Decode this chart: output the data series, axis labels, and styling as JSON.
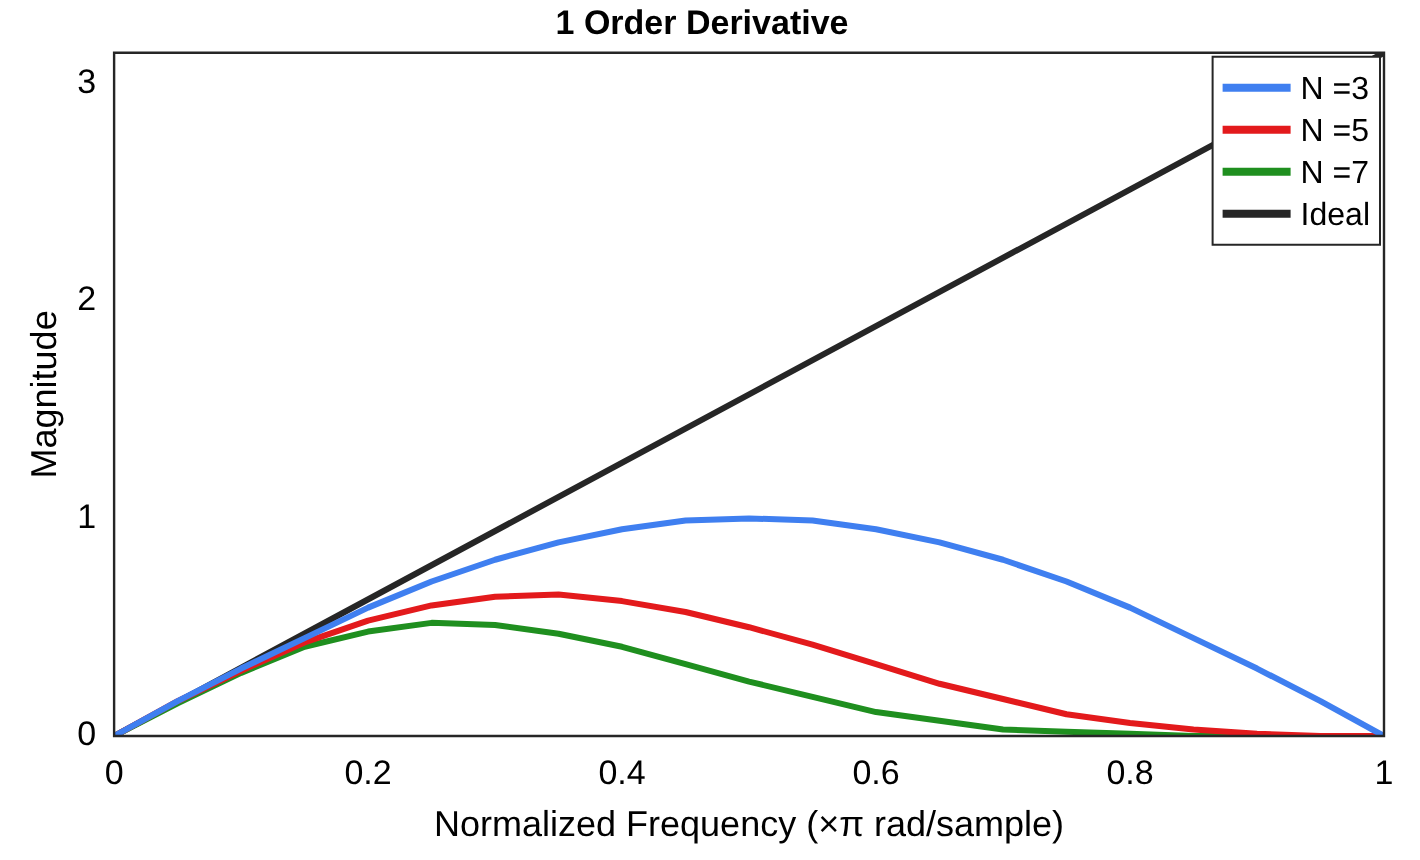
{
  "chart_data": {
    "type": "line",
    "title": "1 Order Derivative",
    "xlabel": "Normalized Frequency (×π rad/sample)",
    "ylabel": "Magnitude",
    "x": [
      0,
      0.05,
      0.1,
      0.15,
      0.2,
      0.25,
      0.3,
      0.35,
      0.4,
      0.45,
      0.5,
      0.55,
      0.6,
      0.65,
      0.7,
      0.75,
      0.8,
      0.85,
      0.9,
      0.95,
      1
    ],
    "series": [
      {
        "name": "N =3",
        "color": "#3f7ff0",
        "values": [
          0,
          0.16,
          0.31,
          0.45,
          0.59,
          0.71,
          0.81,
          0.89,
          0.95,
          0.99,
          1,
          0.99,
          0.95,
          0.89,
          0.81,
          0.71,
          0.59,
          0.45,
          0.31,
          0.16,
          0
        ]
      },
      {
        "name": "N =5",
        "color": "#e31a1c",
        "values": [
          0,
          0.16,
          0.3,
          0.43,
          0.53,
          0.6,
          0.64,
          0.65,
          0.62,
          0.57,
          0.5,
          0.42,
          0.33,
          0.24,
          0.17,
          0.1,
          0.06,
          0.03,
          0.01,
          0,
          0
        ]
      },
      {
        "name": "N =7",
        "color": "#1f8f1f",
        "values": [
          0,
          0.15,
          0.29,
          0.41,
          0.48,
          0.52,
          0.51,
          0.47,
          0.41,
          0.33,
          0.25,
          0.18,
          0.11,
          0.07,
          0.03,
          0.02,
          0.01,
          0,
          0,
          null,
          null
        ]
      },
      {
        "name": "Ideal",
        "color": "#262626",
        "x": [
          0,
          1
        ],
        "values": [
          0,
          3.14
        ]
      }
    ],
    "xlim": [
      0,
      1
    ],
    "xticks": [
      0,
      0.2,
      0.4,
      0.6,
      0.8,
      1
    ],
    "ylim": [
      0,
      3.14
    ],
    "yticks": [
      0,
      1,
      2,
      3
    ],
    "grid": false,
    "legend": "top right",
    "marker": "none",
    "line_style": "solid"
  }
}
